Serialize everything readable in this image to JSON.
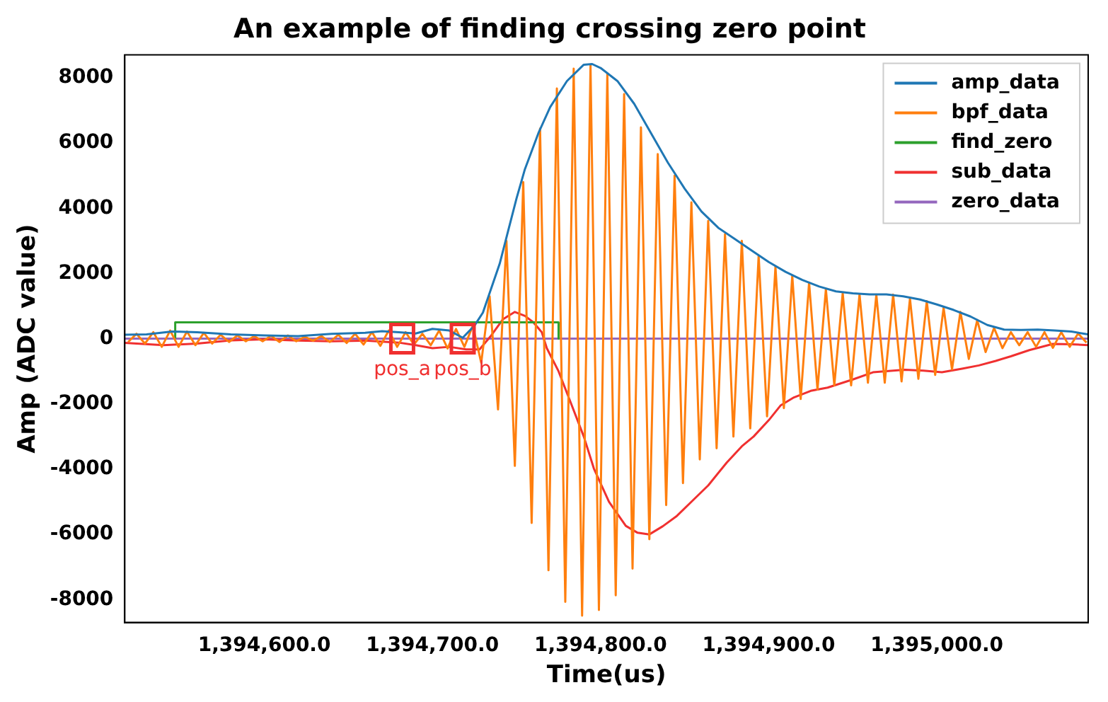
{
  "chart_data": {
    "type": "line",
    "title": "An example of finding crossing zero point",
    "xlabel": "Time(us)",
    "ylabel": "Amp (ADC value)",
    "xlim": [
      1394517,
      1395090
    ],
    "ylim": [
      -8700,
      8700
    ],
    "xticks": [
      {
        "value": 1394600,
        "label": "1,394,600.0"
      },
      {
        "value": 1394700,
        "label": "1,394,700.0"
      },
      {
        "value": 1394800,
        "label": "1,394,800.0"
      },
      {
        "value": 1394900,
        "label": "1,394,900.0"
      },
      {
        "value": 1395000,
        "label": "1,395,000.0"
      }
    ],
    "yticks": [
      -8000,
      -6000,
      -4000,
      -2000,
      0,
      2000,
      4000,
      6000,
      8000
    ],
    "grid": false,
    "legend": "top right",
    "marker": "none",
    "line_style": "solid",
    "annotations": [
      {
        "text": "pos_a",
        "x": 1394682,
        "y": 0
      },
      {
        "text": "pos_b",
        "x": 1394718,
        "y": 0
      }
    ],
    "series": [
      {
        "name": "amp_data",
        "color": "#1f77b4",
        "x": [
          1394517,
          1394530,
          1394545,
          1394560,
          1394580,
          1394600,
          1394620,
          1394640,
          1394660,
          1394670,
          1394680,
          1394690,
          1394700,
          1394710,
          1394718,
          1394725,
          1394730,
          1394740,
          1394745,
          1394750,
          1394755,
          1394763,
          1394770,
          1394780,
          1394790,
          1394795,
          1394800,
          1394810,
          1394820,
          1394830,
          1394840,
          1394850,
          1394860,
          1394870,
          1394880,
          1394890,
          1394900,
          1394910,
          1394920,
          1394930,
          1394940,
          1394950,
          1394960,
          1394970,
          1394980,
          1394990,
          1395000,
          1395010,
          1395020,
          1395030,
          1395040,
          1395050,
          1395060,
          1395070,
          1395080,
          1395090
        ],
        "values": [
          120,
          130,
          220,
          200,
          130,
          100,
          80,
          150,
          180,
          230,
          200,
          160,
          300,
          250,
          30,
          400,
          800,
          2300,
          3300,
          4300,
          5200,
          6300,
          7100,
          7900,
          8400,
          8420,
          8300,
          7900,
          7200,
          6300,
          5400,
          4600,
          3900,
          3400,
          3050,
          2700,
          2350,
          2050,
          1800,
          1600,
          1450,
          1390,
          1360,
          1360,
          1300,
          1200,
          1050,
          880,
          680,
          420,
          280,
          270,
          280,
          250,
          220,
          130
        ]
      },
      {
        "name": "bpf_data",
        "color": "#ff7f0e",
        "x": [
          1394519,
          1394524,
          1394529,
          1394534,
          1394539,
          1394544,
          1394549,
          1394554,
          1394559,
          1394564,
          1394569,
          1394574,
          1394579,
          1394584,
          1394589,
          1394594,
          1394599,
          1394604,
          1394609,
          1394614,
          1394619,
          1394624,
          1394629,
          1394634,
          1394639,
          1394644,
          1394649,
          1394654,
          1394659,
          1394664,
          1394669,
          1394674,
          1394679,
          1394684,
          1394689,
          1394694,
          1394699,
          1394704,
          1394709,
          1394714,
          1394719,
          1394724,
          1394729,
          1394734,
          1394739,
          1394744,
          1394749,
          1394754,
          1394759,
          1394764,
          1394769,
          1394774,
          1394779,
          1394784,
          1394789,
          1394794,
          1394799,
          1394804,
          1394809,
          1394814,
          1394819,
          1394824,
          1394829,
          1394834,
          1394839,
          1394844,
          1394849,
          1394854,
          1394859,
          1394864,
          1394869,
          1394874,
          1394879,
          1394884,
          1394889,
          1394894,
          1394899,
          1394904,
          1394909,
          1394914,
          1394919,
          1394924,
          1394929,
          1394934,
          1394939,
          1394944,
          1394949,
          1394954,
          1394959,
          1394964,
          1394969,
          1394974,
          1394979,
          1394984,
          1394989,
          1394994,
          1394999,
          1395004,
          1395009,
          1395014,
          1395019,
          1395024,
          1395029,
          1395034,
          1395039,
          1395044,
          1395049,
          1395054,
          1395059,
          1395064,
          1395069,
          1395074,
          1395079,
          1395084,
          1395089
        ],
        "values": [
          -100,
          150,
          -150,
          200,
          -250,
          250,
          -250,
          220,
          -200,
          180,
          -150,
          120,
          -100,
          100,
          -80,
          80,
          -80,
          90,
          -100,
          100,
          -80,
          60,
          -60,
          80,
          -100,
          120,
          -130,
          150,
          -180,
          200,
          -220,
          250,
          -250,
          200,
          -180,
          150,
          -200,
          250,
          -300,
          300,
          -250,
          400,
          -740,
          1300,
          -2170,
          3000,
          -3900,
          4800,
          -5650,
          6440,
          -7100,
          7670,
          -8070,
          8280,
          -8490,
          8400,
          -8320,
          8120,
          -7870,
          7500,
          -7050,
          6480,
          -6150,
          5660,
          -5100,
          5000,
          -4430,
          4180,
          -3700,
          3610,
          -3360,
          3200,
          -3000,
          3000,
          -2750,
          2550,
          -2380,
          2210,
          -2130,
          1930,
          -1850,
          1720,
          -1560,
          1520,
          -1430,
          1400,
          -1430,
          1360,
          -1350,
          1350,
          -1350,
          1350,
          -1310,
          1230,
          -1230,
          1150,
          -1110,
          950,
          -940,
          820,
          -620,
          570,
          -410,
          330,
          -290,
          200,
          -200,
          200,
          -250,
          200,
          -280,
          200,
          -250,
          160,
          -120
        ]
      },
      {
        "name": "find_zero",
        "color": "#2ca02c",
        "x": [
          1394547,
          1394547,
          1394775,
          1394775
        ],
        "values": [
          0,
          500,
          500,
          0
        ]
      },
      {
        "name": "sub_data",
        "color": "#f03030",
        "x": [
          1394517,
          1394540,
          1394560,
          1394580,
          1394600,
          1394620,
          1394640,
          1394660,
          1394680,
          1394690,
          1394700,
          1394710,
          1394720,
          1394728,
          1394735,
          1394742,
          1394749,
          1394755,
          1394760,
          1394765,
          1394768,
          1394775,
          1394782,
          1394790,
          1394796,
          1394805,
          1394815,
          1394822,
          1394829,
          1394837,
          1394845,
          1394855,
          1394864,
          1394875,
          1394884,
          1394891,
          1394900,
          1394907,
          1394915,
          1394925,
          1394935,
          1394950,
          1394962,
          1394981,
          1394992,
          1395003,
          1395015,
          1395025,
          1395035,
          1395044,
          1395055,
          1395069,
          1395080,
          1395090
        ],
        "values": [
          -130,
          -200,
          -150,
          -50,
          -20,
          -60,
          -80,
          -60,
          -120,
          -200,
          -290,
          -250,
          -330,
          -330,
          100,
          600,
          820,
          700,
          500,
          200,
          -290,
          -1000,
          -1930,
          -3000,
          -3980,
          -5000,
          -5740,
          -5950,
          -6000,
          -5750,
          -5450,
          -4950,
          -4500,
          -3800,
          -3300,
          -3000,
          -2500,
          -2050,
          -1800,
          -1600,
          -1500,
          -1250,
          -1030,
          -950,
          -980,
          -1030,
          -920,
          -820,
          -680,
          -540,
          -350,
          -160,
          -170,
          -200
        ]
      },
      {
        "name": "zero_data",
        "color": "#9467bd",
        "x": [
          1394517,
          1395090
        ],
        "values": [
          0,
          0
        ]
      }
    ]
  }
}
